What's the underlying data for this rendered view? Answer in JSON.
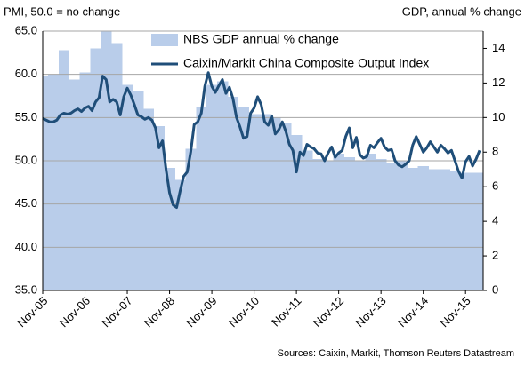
{
  "chart_data": {
    "type": "line",
    "ylabel": "PMI, 50.0 = no change",
    "y2label": "GDP, annual % change",
    "source": "Sources: Caixin, Markit, Thomson Reuters Datastream",
    "grid": true,
    "legend": "top",
    "categories": [
      "Nov-05",
      null,
      null,
      null,
      null,
      null,
      null,
      null,
      null,
      null,
      null,
      null,
      "Nov-06",
      null,
      null,
      null,
      null,
      null,
      null,
      null,
      null,
      null,
      null,
      null,
      "Nov-07",
      null,
      null,
      null,
      null,
      null,
      null,
      null,
      null,
      null,
      null,
      null,
      "Nov-08",
      null,
      null,
      null,
      null,
      null,
      null,
      null,
      null,
      null,
      null,
      null,
      "Nov-09",
      null,
      null,
      null,
      null,
      null,
      null,
      null,
      null,
      null,
      null,
      null,
      "Nov-10",
      null,
      null,
      null,
      null,
      null,
      null,
      null,
      null,
      null,
      null,
      null,
      "Nov-11",
      null,
      null,
      null,
      null,
      null,
      null,
      null,
      null,
      null,
      null,
      null,
      "Nov-12",
      null,
      null,
      null,
      null,
      null,
      null,
      null,
      null,
      null,
      null,
      null,
      "Nov-13",
      null,
      null,
      null,
      null,
      null,
      null,
      null,
      null,
      null,
      null,
      null,
      "Nov-14",
      null,
      null,
      null,
      null,
      null,
      null,
      null,
      null,
      null,
      null,
      null,
      "Nov-15",
      null,
      null,
      null,
      null,
      null
    ],
    "ylim": [
      35,
      65
    ],
    "yticks": [
      {
        "value": 35,
        "label": "35.0"
      },
      {
        "value": 40,
        "label": "40.0"
      },
      {
        "value": 45,
        "label": "45.0"
      },
      {
        "value": 50,
        "label": "50.0"
      },
      {
        "value": 55,
        "label": "55.0"
      },
      {
        "value": 60,
        "label": "60.0"
      },
      {
        "value": 65,
        "label": "65.0"
      }
    ],
    "y2lim": [
      0,
      15
    ],
    "y2ticks": [
      0,
      2,
      4,
      6,
      8,
      10,
      12,
      14
    ],
    "series": [
      {
        "name": "NBS GDP annual % change",
        "type": "area",
        "axis": "y2",
        "color": "#b9cdea",
        "values": [
          12.4,
          12.4,
          12.5,
          12.5,
          12.5,
          13.9,
          13.9,
          13.9,
          12.2,
          12.2,
          12.2,
          12.6,
          12.6,
          12.6,
          14.0,
          14.0,
          14.0,
          15.0,
          15.0,
          15.0,
          14.3,
          14.3,
          14.3,
          11.9,
          11.9,
          11.9,
          11.5,
          11.5,
          11.5,
          10.5,
          10.5,
          10.5,
          9.5,
          9.5,
          9.5,
          7.1,
          7.1,
          7.1,
          6.4,
          6.4,
          6.4,
          8.2,
          8.2,
          8.2,
          10.6,
          10.6,
          10.6,
          11.9,
          11.9,
          11.9,
          12.1,
          12.1,
          12.1,
          11.2,
          11.2,
          11.2,
          10.6,
          10.6,
          10.6,
          10.2,
          10.2,
          10.2,
          10.2,
          10.2,
          10.2,
          10.0,
          10.0,
          10.0,
          9.7,
          9.7,
          9.7,
          9.0,
          9.0,
          9.0,
          8.1,
          8.1,
          8.1,
          7.6,
          7.6,
          7.6,
          7.5,
          7.5,
          7.5,
          7.9,
          7.9,
          7.9,
          7.7,
          7.7,
          7.7,
          7.5,
          7.5,
          7.5,
          7.9,
          7.9,
          7.9,
          7.6,
          7.6,
          7.6,
          7.4,
          7.4,
          7.4,
          7.5,
          7.5,
          7.5,
          7.1,
          7.1,
          7.1,
          7.2,
          7.2,
          7.2,
          7.0,
          7.0,
          7.0,
          7.0,
          7.0,
          7.0,
          6.9,
          6.9,
          6.9,
          6.8,
          6.8,
          6.8,
          6.8,
          6.8,
          6.8,
          6.8
        ]
      },
      {
        "name": "Caixin/Markit China Composite Output Index",
        "type": "line",
        "color": "#1f4e79",
        "values": [
          54.9,
          54.7,
          54.5,
          54.5,
          54.7,
          55.3,
          55.5,
          55.4,
          55.5,
          55.8,
          56.0,
          55.7,
          56.1,
          56.3,
          55.8,
          56.8,
          57.3,
          59.8,
          59.4,
          56.8,
          57.1,
          56.8,
          55.3,
          57.4,
          58.4,
          57.6,
          56.5,
          55.3,
          55.1,
          54.8,
          55.0,
          54.7,
          53.8,
          51.5,
          52.3,
          49.0,
          46.3,
          44.9,
          44.6,
          46.5,
          48.2,
          48.7,
          51.0,
          54.2,
          54.5,
          55.5,
          58.6,
          60.2,
          58.6,
          57.9,
          58.7,
          59.4,
          57.8,
          58.5,
          57.2,
          55.0,
          53.9,
          52.6,
          52.8,
          55.5,
          56.1,
          57.4,
          56.5,
          54.5,
          54.1,
          55.2,
          53.1,
          53.6,
          54.5,
          53.4,
          51.9,
          51.2,
          48.7,
          51.0,
          50.6,
          51.9,
          51.6,
          51.4,
          50.9,
          50.8,
          50.0,
          50.9,
          51.6,
          50.4,
          50.9,
          51.2,
          52.8,
          53.8,
          51.5,
          52.7,
          50.7,
          50.3,
          50.5,
          51.8,
          51.5,
          52.1,
          52.6,
          51.6,
          51.2,
          51.3,
          50.0,
          49.5,
          49.3,
          49.6,
          50.0,
          51.8,
          52.8,
          51.9,
          51.0,
          51.5,
          52.2,
          51.6,
          51.0,
          51.8,
          51.4,
          50.9,
          51.2,
          50.0,
          48.8,
          48.0,
          49.9,
          50.5,
          49.4,
          50.2,
          51.2,
          null
        ]
      }
    ]
  }
}
